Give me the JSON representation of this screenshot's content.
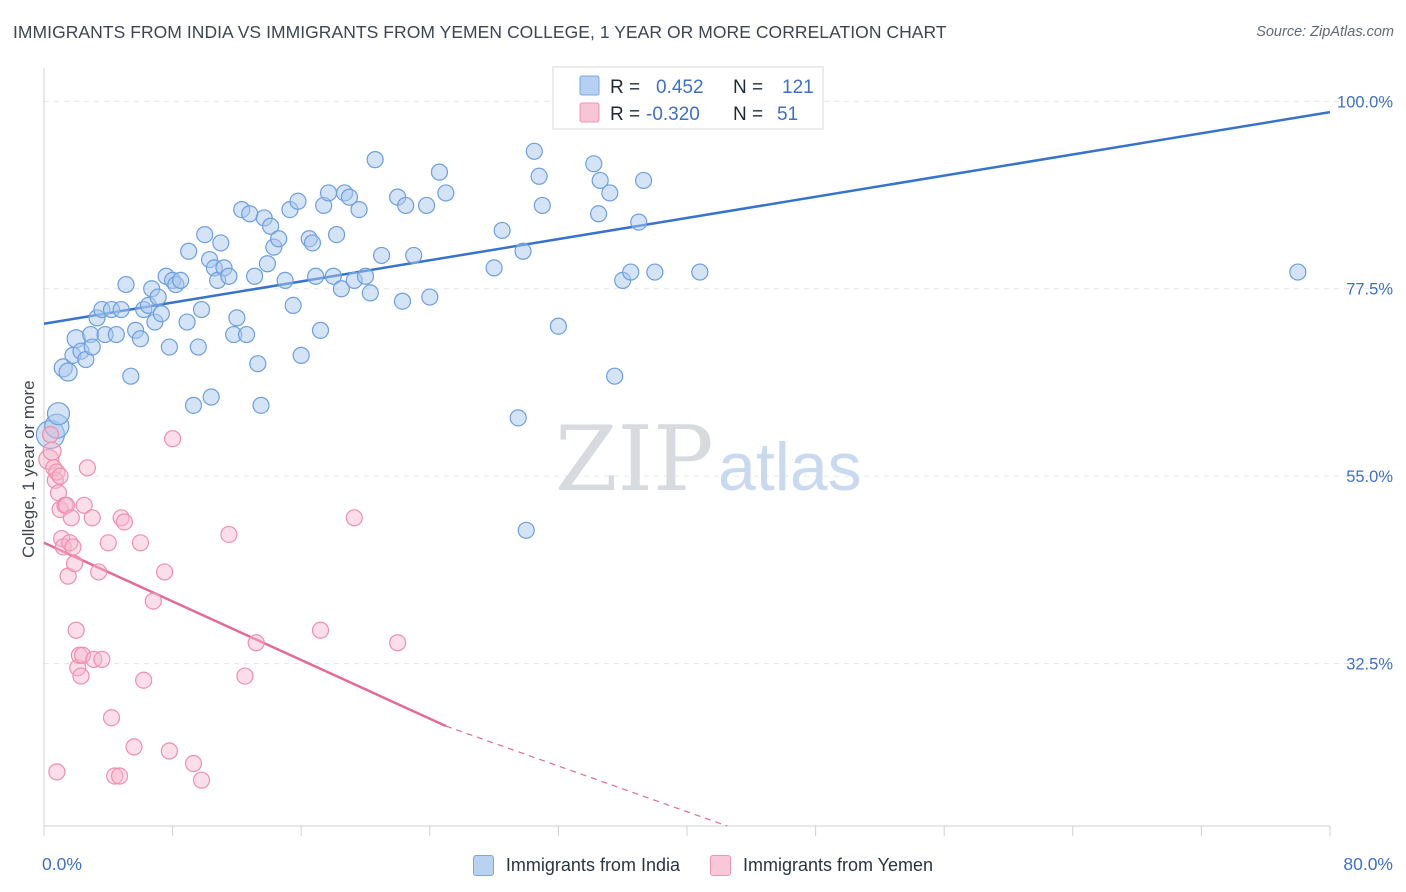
{
  "header": {
    "title": "IMMIGRANTS FROM INDIA VS IMMIGRANTS FROM YEMEN COLLEGE, 1 YEAR OR MORE CORRELATION CHART",
    "source": "Source: ZipAtlas.com"
  },
  "watermark": {
    "part1": "ZIP",
    "part2": "atlas"
  },
  "legend_box": {
    "rows": [
      {
        "r_label": "R =",
        "r_value": "0.452",
        "n_label": "N =",
        "n_value": "121"
      },
      {
        "r_label": "R =",
        "r_value": "-0.320",
        "n_label": "N =",
        "n_value": "51"
      }
    ]
  },
  "bottom_legend": [
    "Immigrants from India",
    "Immigrants from Yemen"
  ],
  "chart_data": {
    "type": "scatter",
    "title": "IMMIGRANTS FROM INDIA VS IMMIGRANTS FROM YEMEN COLLEGE, 1 YEAR OR MORE CORRELATION CHART",
    "xlabel": "",
    "ylabel": "College, 1 year or more",
    "xlim": [
      0,
      80
    ],
    "ylim": [
      13,
      104
    ],
    "x_tick_labels": [
      "0.0%",
      "80.0%"
    ],
    "y_ticks": [
      32.5,
      55.0,
      77.5,
      100.0
    ],
    "y_tick_labels": [
      "32.5%",
      "55.0%",
      "77.5%",
      "100.0%"
    ],
    "grid": true,
    "legend_placement": "top-center",
    "colors": {
      "india_fill": "#a9c8ee",
      "india_stroke": "#6d9fdc",
      "india_line": "#3773cc",
      "yemen_fill": "#f6b6cb",
      "yemen_stroke": "#ee8fae",
      "yemen_line": "#e06c97"
    },
    "series": [
      {
        "name": "Immigrants from India",
        "r": 0.452,
        "n": 121,
        "trend": {
          "x": [
            0,
            80
          ],
          "y": [
            73.3,
            98.7
          ]
        },
        "points": [
          [
            0.4,
            60.0,
            14
          ],
          [
            0.8,
            61.0,
            12
          ],
          [
            0.9,
            62.5,
            11
          ],
          [
            1.2,
            68.0,
            9
          ],
          [
            1.5,
            67.5,
            9
          ],
          [
            1.8,
            69.5,
            8
          ],
          [
            2.0,
            71.5,
            9
          ],
          [
            2.3,
            70.0,
            8
          ],
          [
            2.6,
            69.0,
            8
          ],
          [
            2.9,
            72.0,
            8
          ],
          [
            3.0,
            70.5,
            8
          ],
          [
            3.3,
            74.0,
            8
          ],
          [
            3.6,
            75.0,
            8
          ],
          [
            3.8,
            72.0,
            8
          ],
          [
            4.2,
            75.0,
            8
          ],
          [
            4.5,
            72.0,
            8
          ],
          [
            4.8,
            75.0,
            8
          ],
          [
            5.1,
            78.0,
            8
          ],
          [
            5.4,
            67.0,
            8
          ],
          [
            5.7,
            72.5,
            8
          ],
          [
            6.0,
            71.5,
            8
          ],
          [
            6.2,
            75.0,
            8
          ],
          [
            6.5,
            75.5,
            8
          ],
          [
            6.7,
            77.5,
            8
          ],
          [
            6.9,
            73.5,
            8
          ],
          [
            7.1,
            76.5,
            8
          ],
          [
            7.3,
            74.5,
            8
          ],
          [
            7.6,
            79.0,
            8
          ],
          [
            7.8,
            70.5,
            8
          ],
          [
            8.0,
            78.5,
            8
          ],
          [
            8.2,
            78.0,
            8
          ],
          [
            8.5,
            78.5,
            8
          ],
          [
            8.9,
            73.5,
            8
          ],
          [
            9.0,
            82.0,
            8
          ],
          [
            9.3,
            63.5,
            8
          ],
          [
            9.6,
            70.5,
            8
          ],
          [
            9.8,
            75.0,
            8
          ],
          [
            10.0,
            84.0,
            8
          ],
          [
            10.3,
            81.0,
            8
          ],
          [
            10.4,
            64.5,
            8
          ],
          [
            10.6,
            80.0,
            8
          ],
          [
            10.8,
            78.5,
            8
          ],
          [
            11.0,
            83.0,
            8
          ],
          [
            11.2,
            80.0,
            8
          ],
          [
            11.5,
            79.0,
            8
          ],
          [
            11.8,
            72.0,
            8
          ],
          [
            12.0,
            74.0,
            8
          ],
          [
            12.3,
            87.0,
            8
          ],
          [
            12.6,
            72.0,
            8
          ],
          [
            12.8,
            86.5,
            8
          ],
          [
            13.1,
            79.0,
            8
          ],
          [
            13.3,
            68.5,
            8
          ],
          [
            13.5,
            63.5,
            8
          ],
          [
            13.7,
            86.0,
            8
          ],
          [
            13.9,
            80.5,
            8
          ],
          [
            14.1,
            85.0,
            8
          ],
          [
            14.3,
            82.5,
            8
          ],
          [
            14.6,
            83.5,
            8
          ],
          [
            15.0,
            78.5,
            8
          ],
          [
            15.3,
            87.0,
            8
          ],
          [
            15.5,
            75.5,
            8
          ],
          [
            15.8,
            88.0,
            8
          ],
          [
            16.0,
            69.5,
            8
          ],
          [
            16.5,
            83.5,
            8
          ],
          [
            16.7,
            83.0,
            8
          ],
          [
            16.9,
            79.0,
            8
          ],
          [
            17.2,
            72.5,
            8
          ],
          [
            17.4,
            87.5,
            8
          ],
          [
            17.7,
            89.0,
            8
          ],
          [
            18.0,
            79.0,
            8
          ],
          [
            18.2,
            84.0,
            8
          ],
          [
            18.5,
            77.5,
            8
          ],
          [
            18.7,
            89.0,
            8
          ],
          [
            19.0,
            88.5,
            8
          ],
          [
            19.3,
            78.5,
            8
          ],
          [
            19.6,
            87.0,
            8
          ],
          [
            20.0,
            79.0,
            8
          ],
          [
            20.3,
            77.0,
            8
          ],
          [
            20.6,
            93.0,
            8
          ],
          [
            21.0,
            81.5,
            8
          ],
          [
            22.0,
            88.5,
            8
          ],
          [
            22.3,
            76.0,
            8
          ],
          [
            22.5,
            87.5,
            8
          ],
          [
            23.0,
            81.5,
            8
          ],
          [
            23.8,
            87.5,
            8
          ],
          [
            24.0,
            76.5,
            8
          ],
          [
            24.6,
            91.5,
            8
          ],
          [
            25.0,
            89.0,
            8
          ],
          [
            28.0,
            80.0,
            8
          ],
          [
            28.5,
            84.5,
            8
          ],
          [
            29.5,
            62.0,
            8
          ],
          [
            29.8,
            82.0,
            8
          ],
          [
            30.0,
            48.5,
            8
          ],
          [
            30.5,
            94.0,
            8
          ],
          [
            30.8,
            91.0,
            8
          ],
          [
            31.0,
            87.5,
            8
          ],
          [
            32.0,
            73.0,
            8
          ],
          [
            34.2,
            92.5,
            8
          ],
          [
            34.5,
            86.5,
            8
          ],
          [
            34.6,
            90.5,
            8
          ],
          [
            35.2,
            89.0,
            8
          ],
          [
            35.5,
            67.0,
            8
          ],
          [
            36.0,
            78.5,
            8
          ],
          [
            36.5,
            79.5,
            8
          ],
          [
            37.0,
            85.5,
            8
          ],
          [
            37.3,
            90.5,
            8
          ],
          [
            38.0,
            79.5,
            8
          ],
          [
            40.8,
            79.5,
            8
          ],
          [
            78.0,
            79.5,
            8
          ]
        ]
      },
      {
        "name": "Immigrants from Yemen",
        "r": -0.32,
        "n": 51,
        "trend": {
          "x": [
            0,
            25
          ],
          "y": [
            47.0,
            25.0
          ]
        },
        "trend_extension": {
          "x": [
            25,
            42.5
          ],
          "y": [
            25.0,
            13.0
          ]
        },
        "points": [
          [
            0.3,
            57.0,
            10
          ],
          [
            0.4,
            60.0,
            8
          ],
          [
            0.5,
            58.0,
            9
          ],
          [
            0.6,
            56.0,
            8
          ],
          [
            0.7,
            54.5,
            8
          ],
          [
            0.8,
            55.5,
            8
          ],
          [
            0.9,
            53.0,
            8
          ],
          [
            1.0,
            51.0,
            8
          ],
          [
            1.1,
            47.5,
            8
          ],
          [
            1.2,
            46.5,
            8
          ],
          [
            1.3,
            51.5,
            8
          ],
          [
            1.4,
            51.5,
            8
          ],
          [
            1.5,
            43.0,
            8
          ],
          [
            1.6,
            47.0,
            8
          ],
          [
            1.7,
            50.0,
            8
          ],
          [
            1.8,
            46.5,
            8
          ],
          [
            1.9,
            44.5,
            8
          ],
          [
            2.0,
            36.5,
            8
          ],
          [
            2.1,
            32.0,
            8
          ],
          [
            2.2,
            33.5,
            8
          ],
          [
            2.3,
            31.0,
            8
          ],
          [
            2.4,
            33.5,
            8
          ],
          [
            2.5,
            51.5,
            8
          ],
          [
            2.7,
            56.0,
            8
          ],
          [
            3.0,
            50.0,
            8
          ],
          [
            3.1,
            33.0,
            8
          ],
          [
            3.4,
            43.5,
            8
          ],
          [
            3.6,
            33.0,
            8
          ],
          [
            4.0,
            47.0,
            8
          ],
          [
            4.2,
            26.0,
            8
          ],
          [
            4.4,
            19.0,
            8
          ],
          [
            4.8,
            50.0,
            8
          ],
          [
            5.0,
            49.5,
            8
          ],
          [
            5.6,
            22.5,
            8
          ],
          [
            6.0,
            47.0,
            8
          ],
          [
            6.2,
            30.5,
            8
          ],
          [
            6.8,
            40.0,
            8
          ],
          [
            7.5,
            43.5,
            8
          ],
          [
            7.8,
            22.0,
            8
          ],
          [
            8.0,
            59.5,
            8
          ],
          [
            9.3,
            20.5,
            8
          ],
          [
            9.8,
            18.5,
            8
          ],
          [
            11.5,
            48.0,
            8
          ],
          [
            12.5,
            31.0,
            8
          ],
          [
            13.2,
            35.0,
            8
          ],
          [
            17.2,
            36.5,
            8
          ],
          [
            19.3,
            50.0,
            8
          ],
          [
            22.0,
            35.0,
            8
          ],
          [
            0.8,
            19.5,
            8
          ],
          [
            4.7,
            19.0,
            8
          ],
          [
            1.0,
            55.0,
            8
          ]
        ]
      }
    ]
  }
}
